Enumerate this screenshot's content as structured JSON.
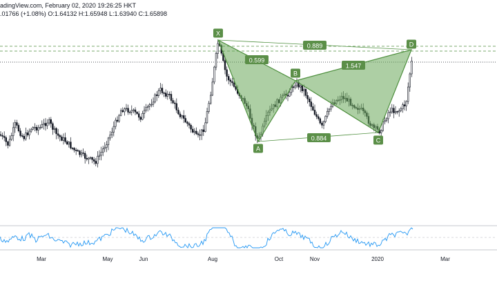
{
  "header": {
    "line1": "adingView.com, February 02, 2020 19:26:25 HKT",
    "change": ".01766 (+1.08%)",
    "o_label": "O:",
    "o_value": "1.64132",
    "h_label": "H:",
    "h_value": "1.65948",
    "l_label": "L:",
    "l_value": "1.63940",
    "c_label": "C:",
    "c_value": "1.65898"
  },
  "colors": {
    "candle": "#131722",
    "pattern_fill": "#6aa85a",
    "pattern_stroke": "#4e8f3e",
    "label_bg": "#5b8f48",
    "label_text": "#ffffff",
    "guide": "#4e8f3e",
    "rsi_line": "#2196f3",
    "price_line": "#131722"
  },
  "chart_data": {
    "type": "candlestick-harmonic",
    "pattern_points": [
      {
        "name": "X",
        "time": "Aug"
      },
      {
        "name": "A",
        "time": "Sep"
      },
      {
        "name": "B",
        "time": "Oct"
      },
      {
        "name": "C",
        "time": "Dec"
      },
      {
        "name": "D",
        "time": "Jan 2020"
      }
    ],
    "ratios": [
      {
        "value": "0.889",
        "between": "X-D"
      },
      {
        "value": "0.599",
        "between": "X-B"
      },
      {
        "value": "1.547",
        "between": "B-D"
      },
      {
        "value": "0.884",
        "between": "A-C"
      }
    ],
    "x_ticks": [
      "Mar",
      "May",
      "Jun",
      "Aug",
      "Oct",
      "Nov",
      "2020",
      "Mar"
    ]
  }
}
